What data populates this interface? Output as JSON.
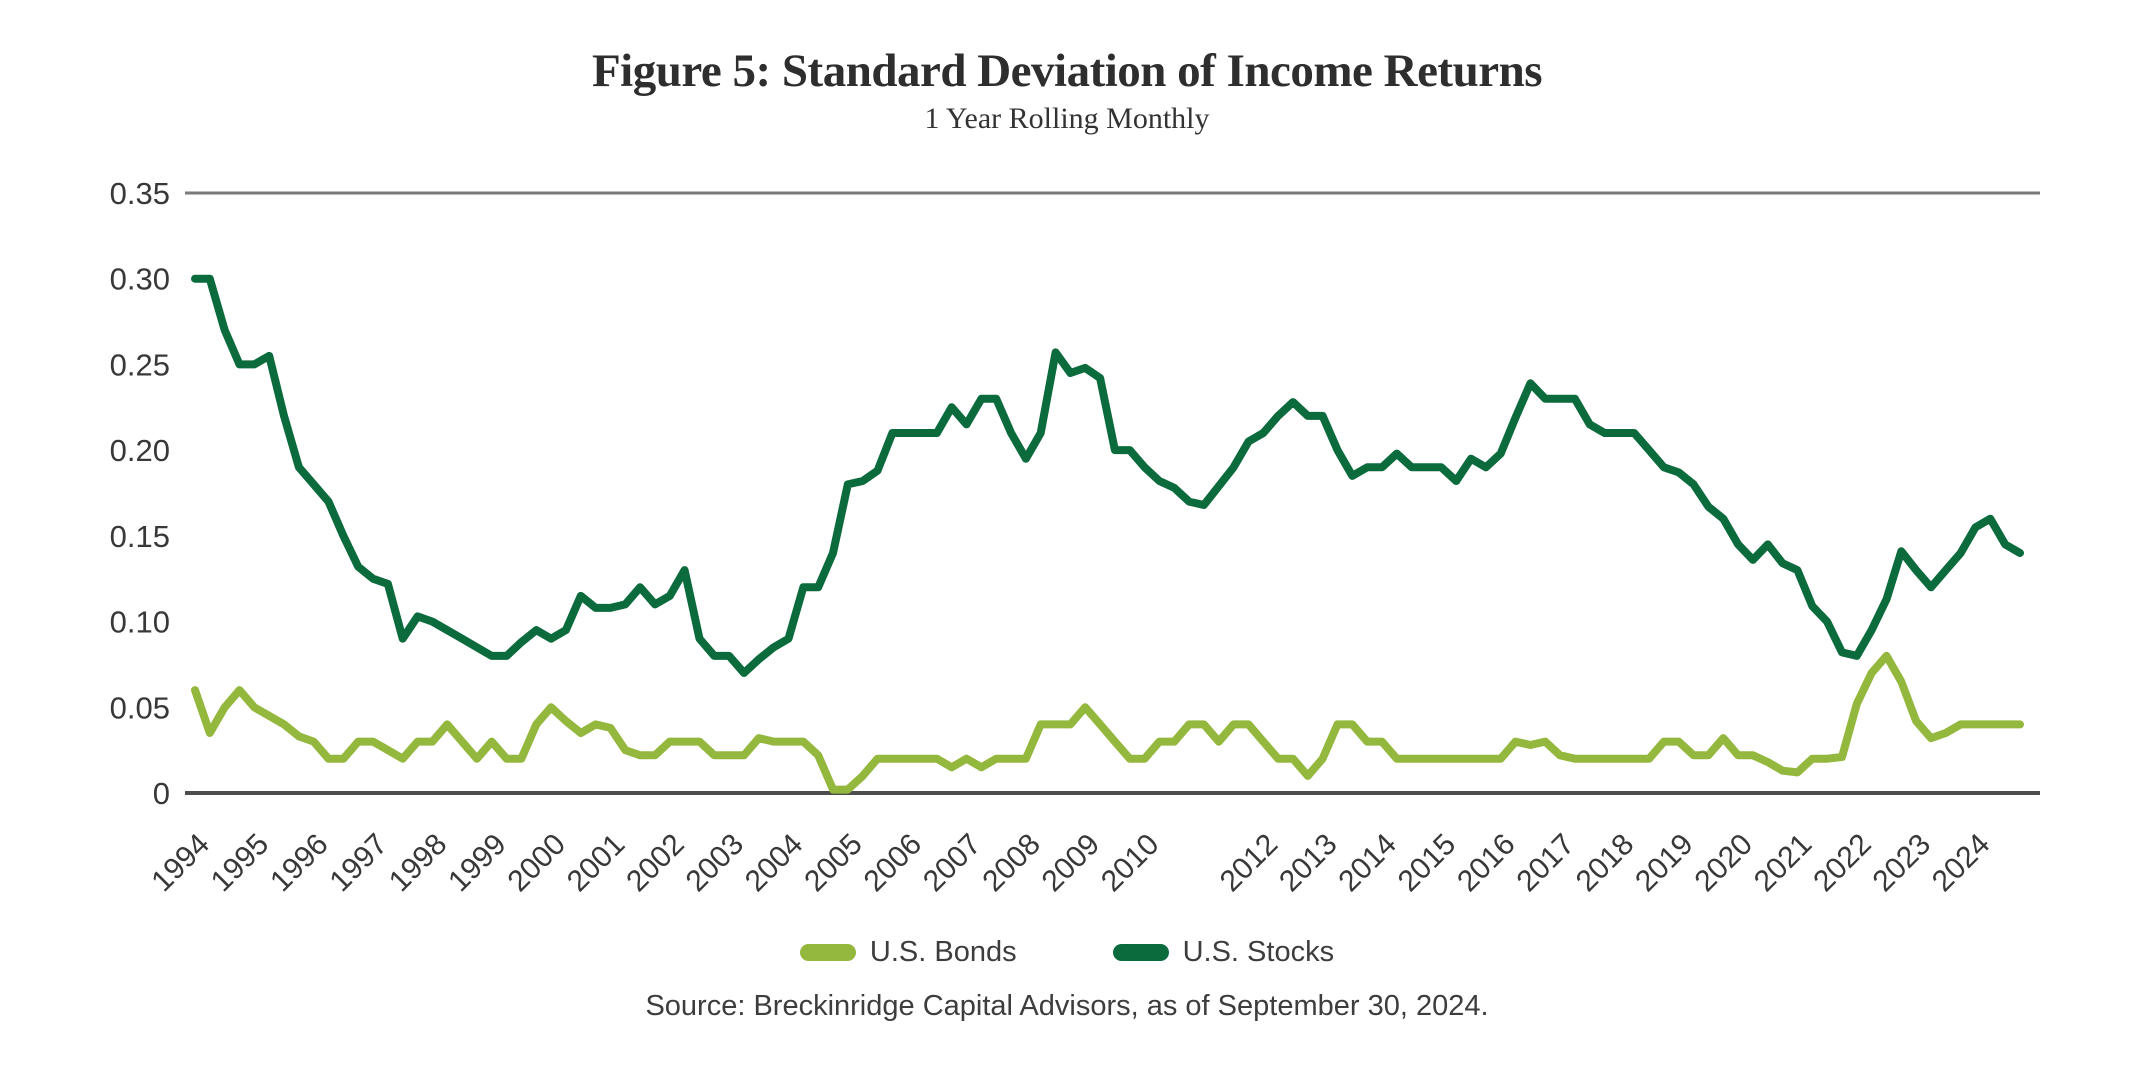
{
  "header": {
    "title": "Figure 5: Standard Deviation of Income Returns",
    "subtitle": "1 Year Rolling Monthly"
  },
  "footer": {
    "source": "Source: Breckinridge Capital Advisors, as of September 30, 2024."
  },
  "colors": {
    "bonds_line": "#93B83D",
    "stocks_line": "#0C6B3C",
    "axis_line": "#4d4d4d",
    "gridline": "#7a7a7a",
    "tick_text": "#383838"
  },
  "chart_data": {
    "type": "line",
    "title": "Figure 5: Standard Deviation of Income Returns",
    "subtitle": "1 Year Rolling Monthly",
    "source": "Source: Breckinridge Capital Advisors, as of September 30, 2024.",
    "grid": "top gridline at 0.35 only, bottom axis at 0",
    "legend_position": "bottom center",
    "ylim": [
      0,
      0.35
    ],
    "yticks": [
      0,
      0.05,
      0.1,
      0.15,
      0.2,
      0.25,
      0.3,
      0.35
    ],
    "ytick_labels": [
      "0",
      "0.05",
      "0.10",
      "0.15",
      "0.20",
      "0.25",
      "0.30",
      "0.35"
    ],
    "xticks": [
      "1994",
      "1995",
      "1996",
      "1997",
      "1998",
      "1999",
      "2000",
      "2001",
      "2002",
      "2003",
      "2004",
      "2005",
      "2006",
      "2007",
      "2008",
      "2009",
      "2010",
      "2012",
      "2013",
      "2014",
      "2015",
      "2016",
      "2017",
      "2018",
      "2019",
      "2020",
      "2021",
      "2022",
      "2023",
      "2024"
    ],
    "x_start_year": 1994.0,
    "x_end_year": 2024.75,
    "x_step_years": 0.25,
    "series": [
      {
        "name": "U.S. Bonds",
        "color": "#93B83D",
        "values": [
          0.06,
          0.035,
          0.05,
          0.06,
          0.05,
          0.045,
          0.04,
          0.033,
          0.03,
          0.02,
          0.02,
          0.03,
          0.03,
          0.025,
          0.02,
          0.03,
          0.03,
          0.04,
          0.03,
          0.02,
          0.03,
          0.02,
          0.02,
          0.04,
          0.05,
          0.042,
          0.035,
          0.04,
          0.038,
          0.025,
          0.022,
          0.022,
          0.03,
          0.03,
          0.03,
          0.022,
          0.022,
          0.022,
          0.032,
          0.03,
          0.03,
          0.03,
          0.022,
          0.002,
          0.002,
          0.01,
          0.02,
          0.02,
          0.02,
          0.02,
          0.02,
          0.015,
          0.02,
          0.015,
          0.02,
          0.02,
          0.02,
          0.04,
          0.04,
          0.04,
          0.05,
          0.04,
          0.03,
          0.02,
          0.02,
          0.03,
          0.03,
          0.04,
          0.04,
          0.03,
          0.04,
          0.04,
          0.03,
          0.02,
          0.02,
          0.01,
          0.02,
          0.04,
          0.04,
          0.03,
          0.03,
          0.02,
          0.02,
          0.02,
          0.02,
          0.02,
          0.02,
          0.02,
          0.02,
          0.03,
          0.028,
          0.03,
          0.022,
          0.02,
          0.02,
          0.02,
          0.02,
          0.02,
          0.02,
          0.03,
          0.03,
          0.022,
          0.022,
          0.032,
          0.022,
          0.022,
          0.018,
          0.013,
          0.012,
          0.02,
          0.02,
          0.021,
          0.052,
          0.07,
          0.08,
          0.065,
          0.042,
          0.032,
          0.035,
          0.04,
          0.04,
          0.04,
          0.04,
          0.04
        ]
      },
      {
        "name": "U.S. Stocks",
        "color": "#0C6B3C",
        "values": [
          0.3,
          0.3,
          0.27,
          0.25,
          0.25,
          0.255,
          0.22,
          0.19,
          0.18,
          0.17,
          0.15,
          0.132,
          0.125,
          0.122,
          0.09,
          0.103,
          0.1,
          0.095,
          0.09,
          0.085,
          0.08,
          0.08,
          0.088,
          0.095,
          0.09,
          0.095,
          0.115,
          0.108,
          0.108,
          0.11,
          0.12,
          0.11,
          0.115,
          0.13,
          0.09,
          0.08,
          0.08,
          0.07,
          0.078,
          0.085,
          0.09,
          0.12,
          0.12,
          0.14,
          0.18,
          0.182,
          0.188,
          0.21,
          0.21,
          0.21,
          0.21,
          0.225,
          0.215,
          0.23,
          0.23,
          0.21,
          0.195,
          0.21,
          0.257,
          0.245,
          0.248,
          0.242,
          0.2,
          0.2,
          0.19,
          0.182,
          0.178,
          0.17,
          0.168,
          0.179,
          0.19,
          0.205,
          0.21,
          0.22,
          0.228,
          0.22,
          0.22,
          0.2,
          0.185,
          0.19,
          0.19,
          0.198,
          0.19,
          0.19,
          0.19,
          0.182,
          0.195,
          0.19,
          0.198,
          0.219,
          0.239,
          0.23,
          0.23,
          0.23,
          0.215,
          0.21,
          0.21,
          0.21,
          0.2,
          0.19,
          0.187,
          0.18,
          0.167,
          0.16,
          0.145,
          0.136,
          0.145,
          0.134,
          0.13,
          0.109,
          0.1,
          0.082,
          0.08,
          0.095,
          0.113,
          0.141,
          0.13,
          0.12,
          0.13,
          0.14,
          0.155,
          0.16,
          0.145,
          0.14
        ]
      }
    ]
  }
}
